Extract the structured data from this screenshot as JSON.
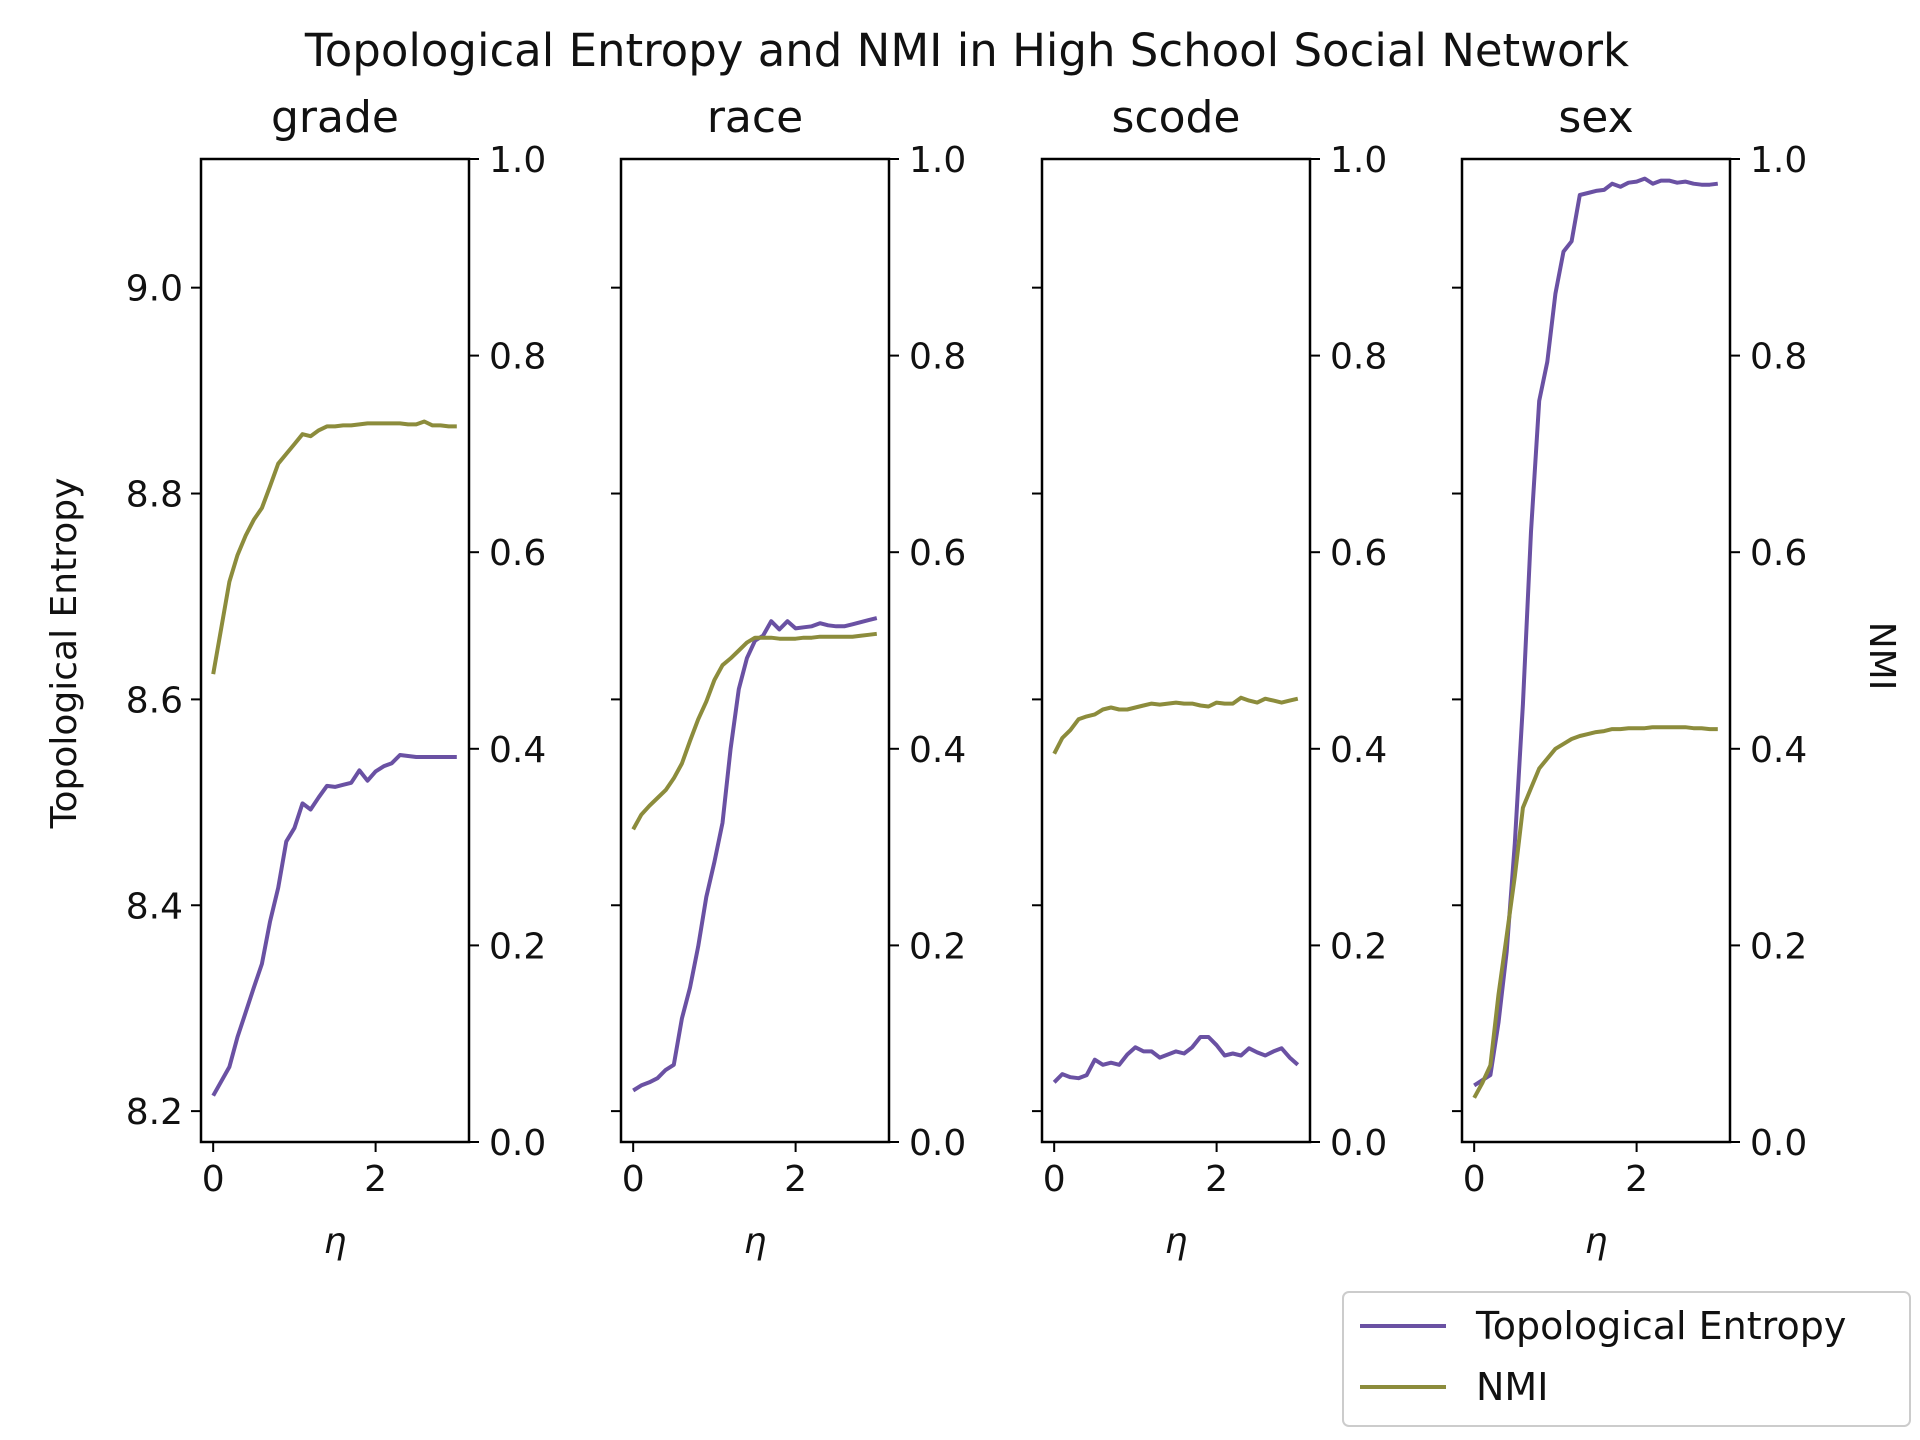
{
  "chart_data": {
    "type": "line",
    "title": "Topological Entropy and NMI in High School Social Network",
    "xlabel": "η",
    "ylabel_left": "Topological Entropy",
    "ylabel_right": "NMI",
    "xlim": [
      -0.15,
      3.15
    ],
    "ylim_left": [
      8.17,
      9.125
    ],
    "ylim_right": [
      0.0,
      1.0
    ],
    "xticks": [
      0,
      2
    ],
    "yticks_left": [
      8.2,
      8.4,
      8.6,
      8.8,
      9.0
    ],
    "yticks_right": [
      0.0,
      0.2,
      0.4,
      0.6,
      0.8,
      1.0
    ],
    "yticks_left_labels": [
      "8.2",
      "8.4",
      "8.6",
      "8.8",
      "9.0"
    ],
    "yticks_right_labels": [
      "0.0",
      "0.2",
      "0.4",
      "0.6",
      "0.8",
      "1.0"
    ],
    "xticks_labels": [
      "0",
      "2"
    ],
    "colors": {
      "entropy": "#6a51a3",
      "nmi": "#8c8c3c"
    },
    "legend": [
      "Topological Entropy",
      "NMI"
    ],
    "legend_position": "lower right, below plots",
    "panels": [
      {
        "title": "grade",
        "x": [
          0,
          0.2,
          0.3,
          0.4,
          0.5,
          0.6,
          0.7,
          0.8,
          0.9,
          1.0,
          1.1,
          1.2,
          1.3,
          1.4,
          1.5,
          1.6,
          1.7,
          1.8,
          1.9,
          2.0,
          2.1,
          2.2,
          2.3,
          2.4,
          2.5,
          2.6,
          2.7,
          2.8,
          2.9,
          3.0
        ],
        "entropy": [
          8.215,
          8.243,
          8.272,
          8.296,
          8.32,
          8.343,
          8.384,
          8.417,
          8.462,
          8.475,
          8.499,
          8.493,
          8.505,
          8.516,
          8.515,
          8.517,
          8.519,
          8.531,
          8.521,
          8.53,
          8.535,
          8.538,
          8.546,
          8.545,
          8.544,
          8.544,
          8.544,
          8.544,
          8.544,
          8.544
        ],
        "nmi": [
          0.476,
          0.57,
          0.597,
          0.617,
          0.633,
          0.645,
          0.667,
          0.69,
          0.7,
          0.71,
          0.72,
          0.718,
          0.724,
          0.728,
          0.728,
          0.729,
          0.729,
          0.73,
          0.731,
          0.731,
          0.731,
          0.731,
          0.731,
          0.73,
          0.73,
          0.733,
          0.729,
          0.729,
          0.728,
          0.728
        ]
      },
      {
        "title": "race",
        "x": [
          0,
          0.1,
          0.2,
          0.3,
          0.4,
          0.5,
          0.6,
          0.7,
          0.8,
          0.9,
          1.0,
          1.1,
          1.2,
          1.3,
          1.4,
          1.5,
          1.6,
          1.7,
          1.8,
          1.9,
          2.0,
          2.1,
          2.2,
          2.3,
          2.4,
          2.5,
          2.6,
          2.7,
          2.8,
          2.9,
          3.0
        ],
        "entropy": [
          8.22,
          8.225,
          8.228,
          8.232,
          8.24,
          8.245,
          8.29,
          8.32,
          8.36,
          8.408,
          8.442,
          8.48,
          8.552,
          8.61,
          8.64,
          8.657,
          8.662,
          8.676,
          8.668,
          8.676,
          8.669,
          8.67,
          8.671,
          8.674,
          8.672,
          8.671,
          8.671,
          8.673,
          8.675,
          8.677,
          8.679
        ],
        "nmi": [
          0.318,
          0.333,
          0.342,
          0.35,
          0.358,
          0.37,
          0.385,
          0.408,
          0.43,
          0.448,
          0.47,
          0.485,
          0.492,
          0.5,
          0.508,
          0.513,
          0.513,
          0.513,
          0.512,
          0.512,
          0.512,
          0.513,
          0.513,
          0.514,
          0.514,
          0.514,
          0.514,
          0.514,
          0.515,
          0.516,
          0.517
        ]
      },
      {
        "title": "scode",
        "x": [
          0,
          0.1,
          0.2,
          0.3,
          0.4,
          0.5,
          0.6,
          0.7,
          0.8,
          0.9,
          1.0,
          1.1,
          1.2,
          1.3,
          1.4,
          1.5,
          1.6,
          1.7,
          1.8,
          1.9,
          2.0,
          2.1,
          2.2,
          2.3,
          2.4,
          2.5,
          2.6,
          2.7,
          2.8,
          2.9,
          3.0
        ],
        "entropy": [
          8.228,
          8.236,
          8.233,
          8.232,
          8.235,
          8.25,
          8.245,
          8.247,
          8.245,
          8.255,
          8.262,
          8.258,
          8.258,
          8.252,
          8.255,
          8.258,
          8.256,
          8.262,
          8.272,
          8.272,
          8.264,
          8.254,
          8.256,
          8.254,
          8.261,
          8.257,
          8.254,
          8.258,
          8.261,
          8.252,
          8.245
        ],
        "nmi": [
          0.395,
          0.411,
          0.419,
          0.43,
          0.433,
          0.435,
          0.44,
          0.442,
          0.44,
          0.44,
          0.442,
          0.444,
          0.446,
          0.445,
          0.446,
          0.447,
          0.446,
          0.446,
          0.444,
          0.443,
          0.447,
          0.446,
          0.446,
          0.452,
          0.449,
          0.447,
          0.451,
          0.449,
          0.447,
          0.449,
          0.451
        ]
      },
      {
        "title": "sex",
        "x": [
          0,
          0.1,
          0.2,
          0.3,
          0.4,
          0.5,
          0.6,
          0.7,
          0.8,
          0.9,
          1.0,
          1.1,
          1.2,
          1.3,
          1.4,
          1.5,
          1.6,
          1.7,
          1.8,
          1.9,
          2.0,
          2.1,
          2.2,
          2.3,
          2.4,
          2.5,
          2.6,
          2.7,
          2.8,
          2.9,
          3.0
        ],
        "entropy": [
          8.225,
          8.23,
          8.235,
          8.286,
          8.355,
          8.46,
          8.595,
          8.763,
          8.89,
          8.928,
          8.994,
          9.035,
          9.045,
          9.09,
          9.092,
          9.094,
          9.095,
          9.101,
          9.098,
          9.102,
          9.103,
          9.106,
          9.101,
          9.104,
          9.104,
          9.102,
          9.103,
          9.101,
          9.1,
          9.1,
          9.101
        ],
        "nmi": [
          0.045,
          0.06,
          0.078,
          0.15,
          0.21,
          0.27,
          0.34,
          0.36,
          0.38,
          0.39,
          0.4,
          0.405,
          0.41,
          0.413,
          0.415,
          0.417,
          0.418,
          0.42,
          0.42,
          0.421,
          0.421,
          0.421,
          0.422,
          0.422,
          0.422,
          0.422,
          0.422,
          0.421,
          0.421,
          0.42,
          0.42
        ]
      }
    ]
  }
}
